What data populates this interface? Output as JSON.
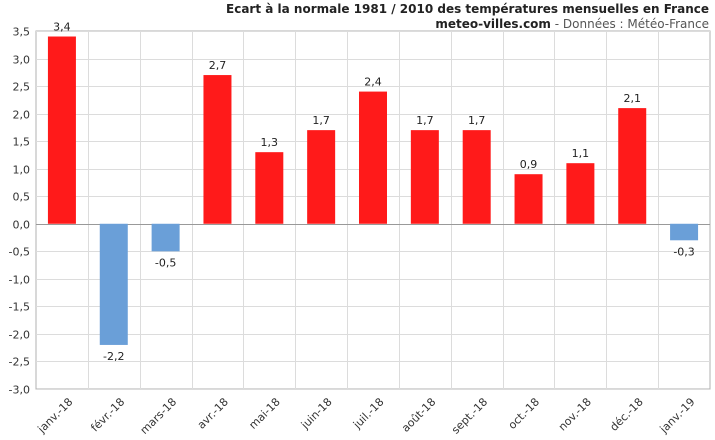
{
  "chart_data": {
    "type": "bar",
    "title": "Ecart à la normale 1981 / 2010 des températures mensuelles en France",
    "subtitle_site": "meteo-villes.com",
    "subtitle_source": " - Données : Météo-France",
    "xlabel": "",
    "ylabel": "",
    "ylim": [
      -3.0,
      3.5
    ],
    "yticks": [
      "3,5",
      "3,0",
      "2,5",
      "2,0",
      "1,5",
      "1,0",
      "0,5",
      "0,0",
      "-0,5",
      "-1,0",
      "-1,5",
      "-2,0",
      "-2,5",
      "-3,0"
    ],
    "ytick_values": [
      3.5,
      3.0,
      2.5,
      2.0,
      1.5,
      1.0,
      0.5,
      0.0,
      -0.5,
      -1.0,
      -1.5,
      -2.0,
      -2.5,
      -3.0
    ],
    "categories": [
      "janv.-18",
      "févr.-18",
      "mars-18",
      "avr.-18",
      "mai-18",
      "juin-18",
      "juil.-18",
      "août-18",
      "sept.-18",
      "oct.-18",
      "nov.-18",
      "déc.-18",
      "janv.-19"
    ],
    "values": [
      3.4,
      -2.2,
      -0.5,
      2.7,
      1.3,
      1.7,
      2.4,
      1.7,
      1.7,
      0.9,
      1.1,
      2.1,
      -0.3
    ],
    "value_labels": [
      "3,4",
      "-2,2",
      "-0,5",
      "2,7",
      "1,3",
      "1,7",
      "2,4",
      "1,7",
      "1,7",
      "0,9",
      "1,1",
      "2,1",
      "-0,3"
    ],
    "grid": true,
    "colors": {
      "positive": "#ff1a1a",
      "negative": "#6a9fd8",
      "grid": "#dcdcdc",
      "axis": "#b0b0b0"
    }
  }
}
